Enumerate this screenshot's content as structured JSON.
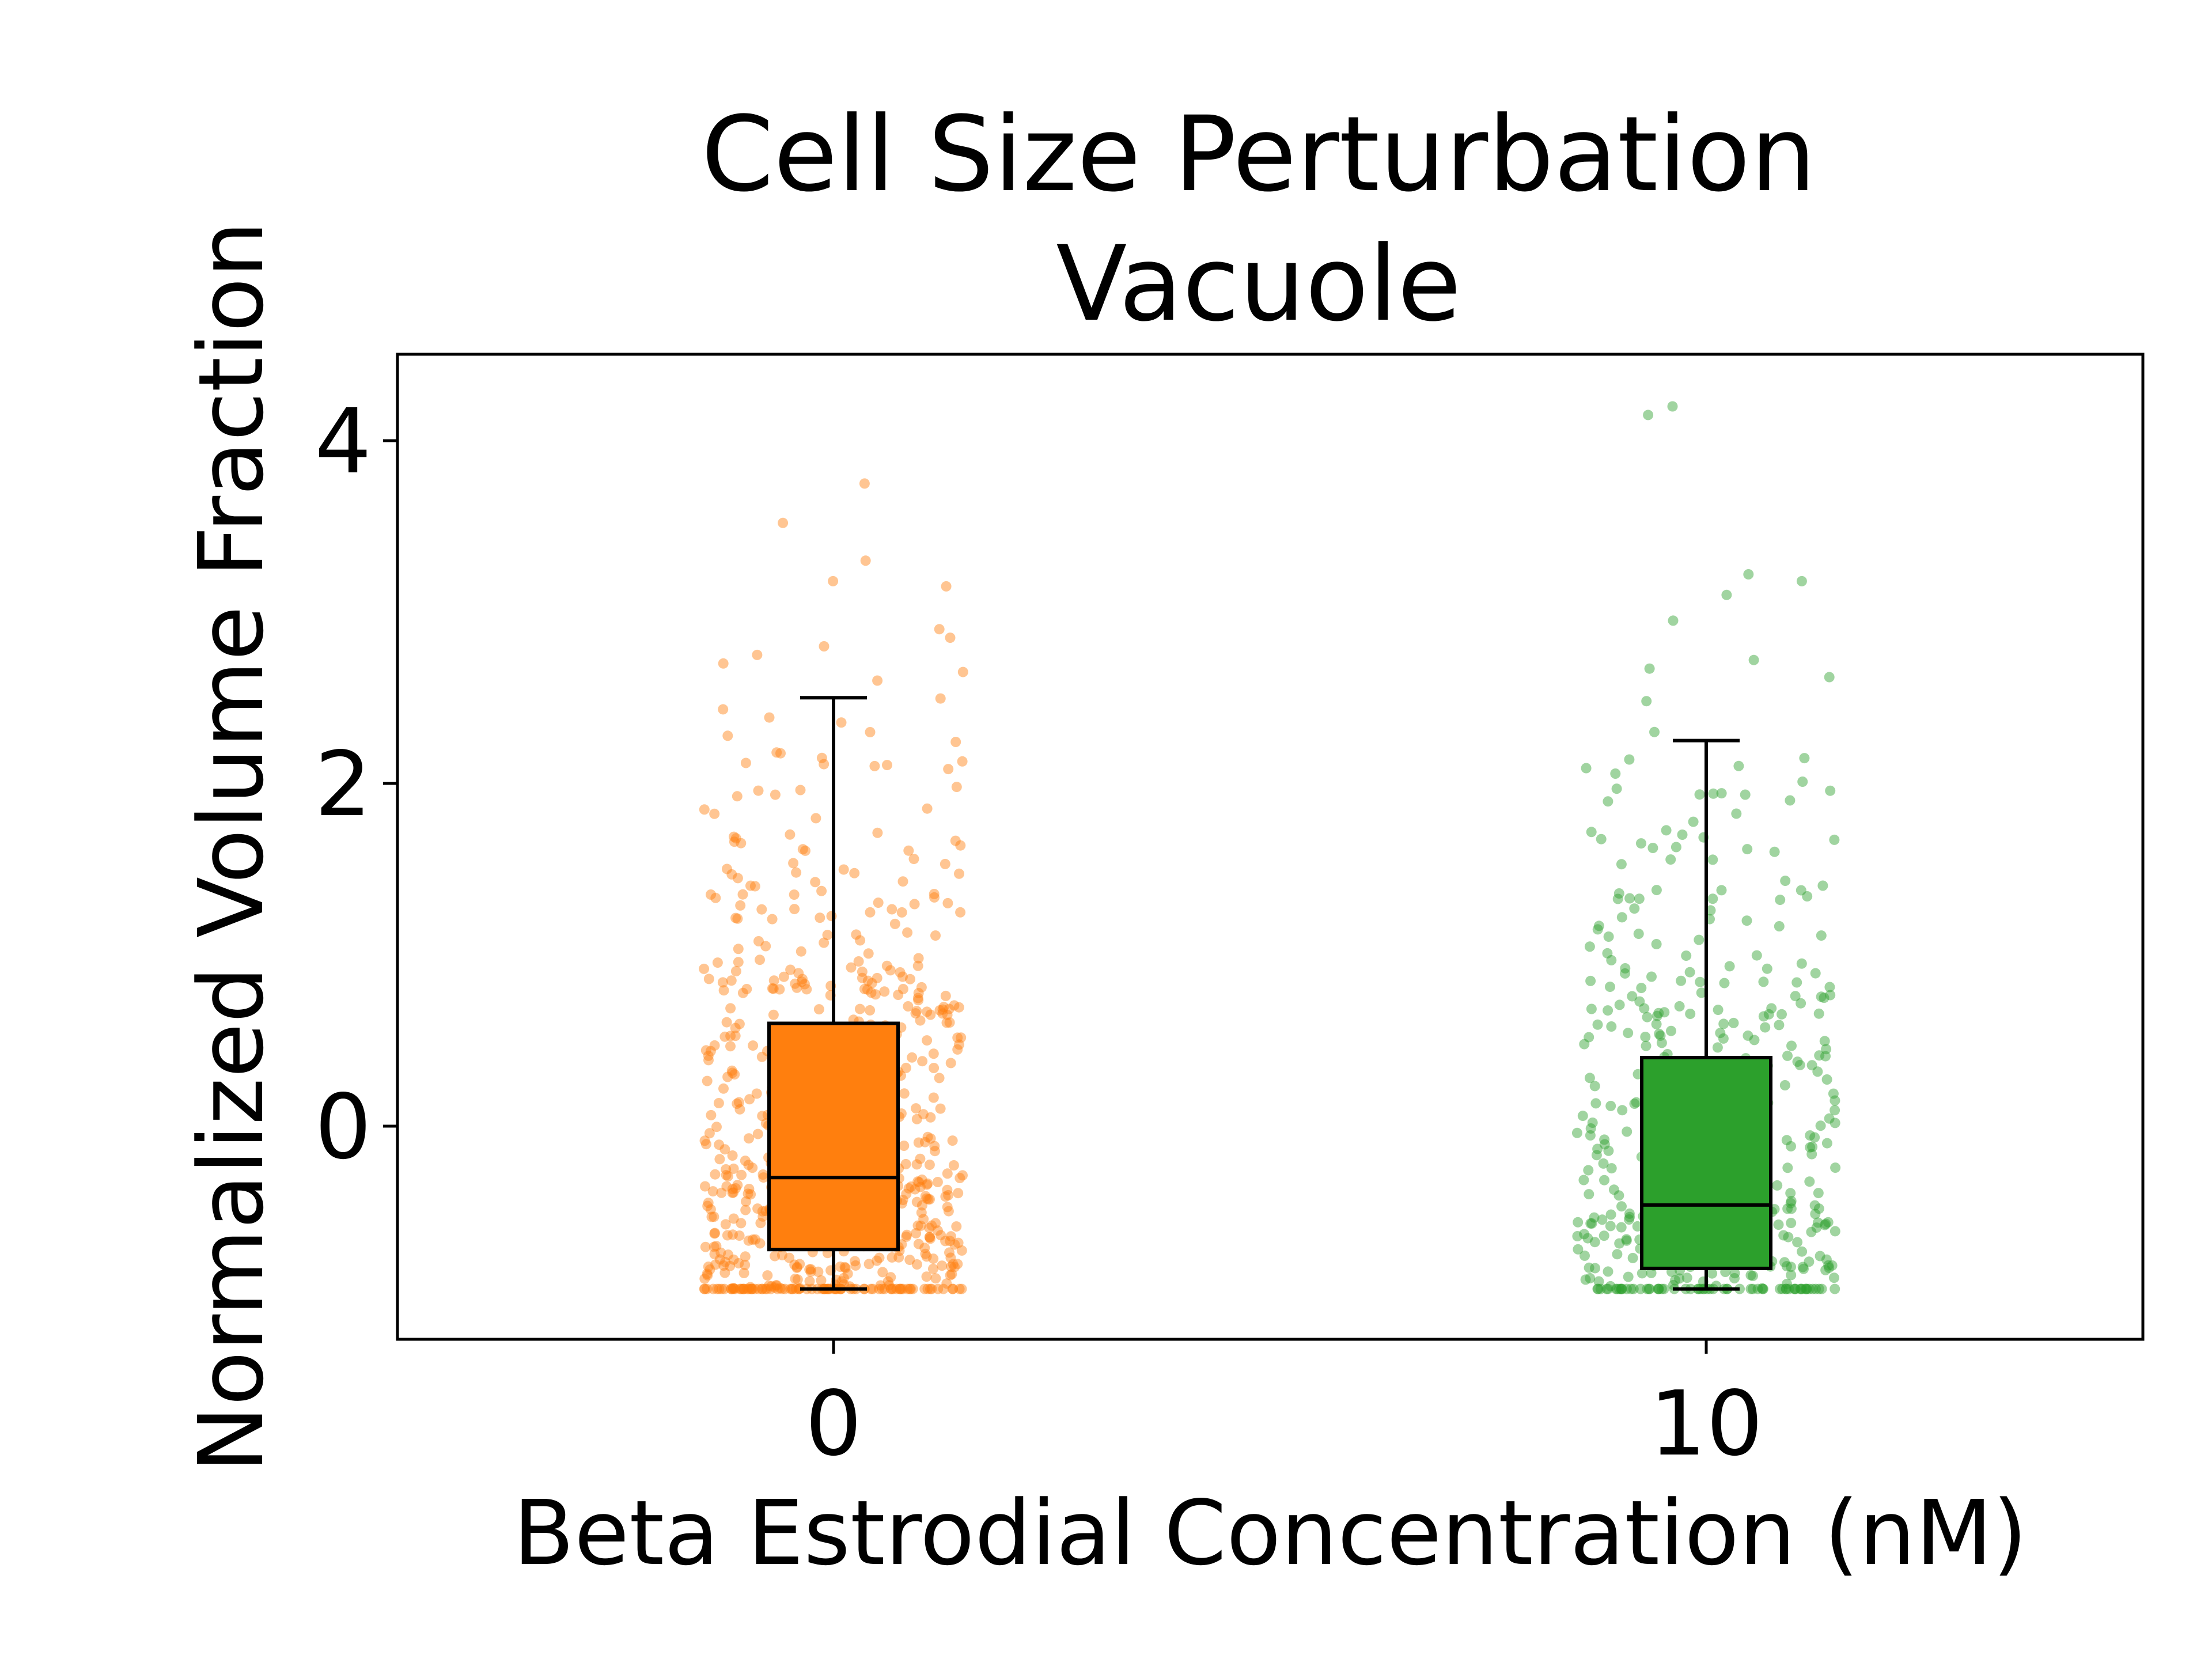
{
  "chart_data": {
    "type": "box",
    "title": [
      "Cell Size Perturbation",
      "Vacuole"
    ],
    "xlabel": "Beta Estrodial Concentration (nM)",
    "ylabel": "Normalized Volume Fraction",
    "categories": [
      "0",
      "10"
    ],
    "ylim": [
      -1.2,
      4.5
    ],
    "yticks": [
      0,
      2,
      4
    ],
    "grid": false,
    "legend": "none",
    "overlay": "jittered scatter of individual cells behind each box",
    "series": [
      {
        "category": "0",
        "color": "#ff7f0e",
        "whisker_low": -0.95,
        "q1": -0.72,
        "median": -0.3,
        "q3": 0.6,
        "whisker_high": 2.5,
        "outliers": [
          2.6,
          2.65,
          2.7,
          2.75,
          2.8,
          2.85,
          2.9,
          3.15,
          3.18,
          3.3,
          3.52,
          3.75
        ],
        "approx_points": 700
      },
      {
        "category": "10",
        "color": "#2ca02c",
        "whisker_low": -0.95,
        "q1": -0.83,
        "median": -0.46,
        "q3": 0.4,
        "whisker_high": 2.25,
        "outliers": [
          2.3,
          2.48,
          2.62,
          2.67,
          2.72,
          2.95,
          3.1,
          3.18,
          3.22,
          4.15,
          4.2
        ],
        "approx_points": 450
      }
    ]
  }
}
